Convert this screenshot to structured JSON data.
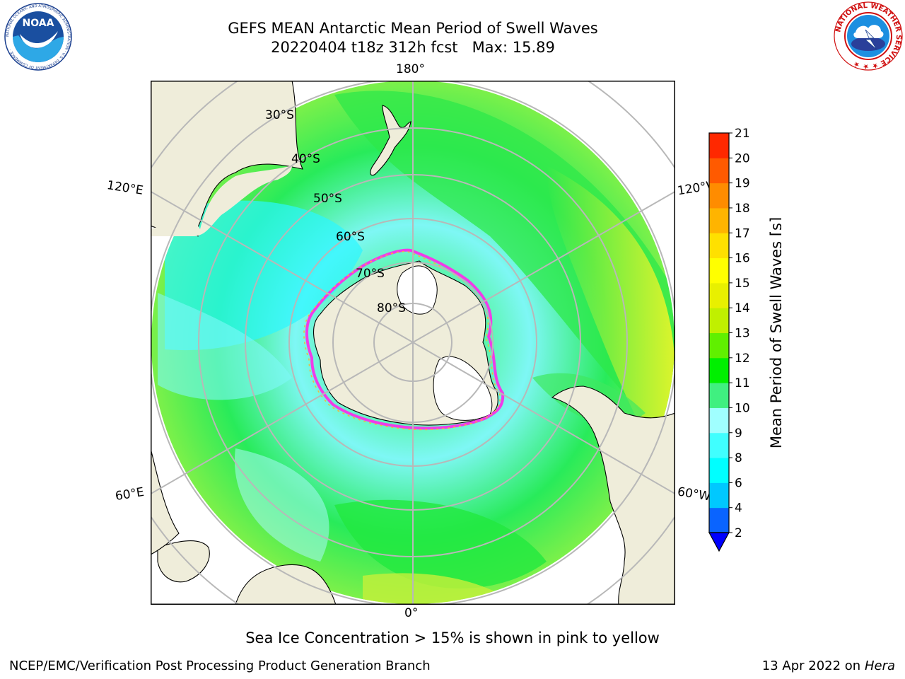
{
  "header": {
    "title": "GEFS MEAN Antarctic Mean Period of Swell Waves",
    "subtitle": "20220404 t18z 312h fcst   Max: 15.89"
  },
  "logos": {
    "left": "NOAA",
    "left_ring_text": "NATIONAL OCEANIC AND ATMOSPHERIC ADMINISTRATION · U.S. DEPARTMENT OF COMMERCE ·",
    "right_ring_text": "NATIONAL WEATHER SERVICE ★ ★ ★"
  },
  "map": {
    "projection": "south-polar-stereographic",
    "lon_labels": {
      "top": "180°",
      "bottom": "0°",
      "upper_left": "120°E",
      "upper_right": "120°W",
      "lower_left": "60°E",
      "lower_right": "60°W"
    },
    "lat_labels": [
      "30°S",
      "40°S",
      "50°S",
      "60°S",
      "70°S",
      "80°S"
    ],
    "land_color": "#efedda",
    "grid_color": "#b8b8b8"
  },
  "colorbar": {
    "label": "Mean Period of Swell Waves [s]",
    "ticks": [
      "2",
      "4",
      "6",
      "8",
      "9",
      "10",
      "11",
      "12",
      "13",
      "14",
      "15",
      "16",
      "17",
      "18",
      "19",
      "20",
      "21"
    ],
    "colors": [
      "#0a64ff",
      "#00c8ff",
      "#00ffff",
      "#40ffff",
      "#a0ffff",
      "#40f080",
      "#00f000",
      "#60f000",
      "#c0f000",
      "#e8f000",
      "#ffff00",
      "#ffe000",
      "#ffb400",
      "#ff8c00",
      "#ff5a00",
      "#ff2800"
    ],
    "extend_color": "#0000ff"
  },
  "notes": {
    "sea_ice": "Sea Ice Concentration > 15% is shown in pink to yellow"
  },
  "footer": {
    "credit": "NCEP/EMC/Verification Post Processing Product Generation Branch",
    "date": "13 Apr 2022 on ",
    "machine": "Hera"
  }
}
